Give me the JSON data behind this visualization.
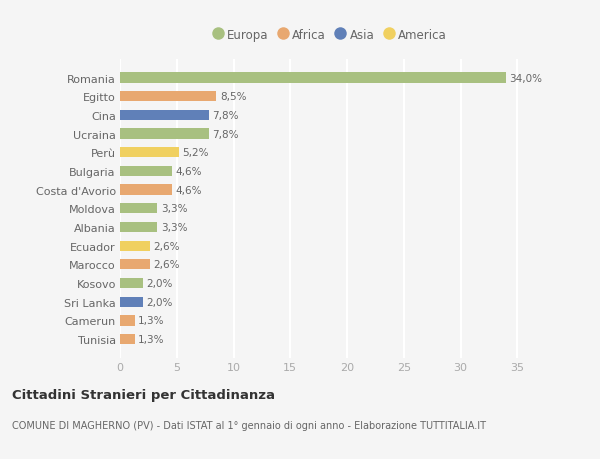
{
  "countries": [
    "Romania",
    "Egitto",
    "Cina",
    "Ucraina",
    "Perù",
    "Bulgaria",
    "Costa d'Avorio",
    "Moldova",
    "Albania",
    "Ecuador",
    "Marocco",
    "Kosovo",
    "Sri Lanka",
    "Camerun",
    "Tunisia"
  ],
  "values": [
    34.0,
    8.5,
    7.8,
    7.8,
    5.2,
    4.6,
    4.6,
    3.3,
    3.3,
    2.6,
    2.6,
    2.0,
    2.0,
    1.3,
    1.3
  ],
  "labels": [
    "34,0%",
    "8,5%",
    "7,8%",
    "7,8%",
    "5,2%",
    "4,6%",
    "4,6%",
    "3,3%",
    "3,3%",
    "2,6%",
    "2,6%",
    "2,0%",
    "2,0%",
    "1,3%",
    "1,3%"
  ],
  "continents": [
    "Europa",
    "Africa",
    "Asia",
    "Europa",
    "America",
    "Europa",
    "Africa",
    "Europa",
    "Europa",
    "America",
    "Africa",
    "Europa",
    "Asia",
    "Africa",
    "Africa"
  ],
  "continent_colors": {
    "Europa": "#a8c080",
    "Africa": "#e8a870",
    "Asia": "#6080b8",
    "America": "#f0d060"
  },
  "legend_order": [
    "Europa",
    "Africa",
    "Asia",
    "America"
  ],
  "title": "Cittadini Stranieri per Cittadinanza",
  "subtitle": "COMUNE DI MAGHERNO (PV) - Dati ISTAT al 1° gennaio di ogni anno - Elaborazione TUTTITALIA.IT",
  "xlim": [
    0,
    37
  ],
  "xticks": [
    0,
    5,
    10,
    15,
    20,
    25,
    30,
    35
  ],
  "bg_color": "#f5f5f5",
  "grid_color": "#ffffff",
  "bar_height": 0.55
}
